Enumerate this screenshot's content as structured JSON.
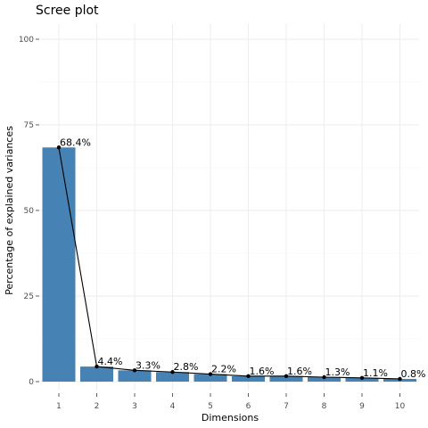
{
  "chart_data": {
    "type": "bar",
    "title": "Scree plot",
    "xlabel": "Dimensions",
    "ylabel": "Percentage of explained variances",
    "categories": [
      "1",
      "2",
      "3",
      "4",
      "5",
      "6",
      "7",
      "8",
      "9",
      "10"
    ],
    "values": [
      68.4,
      4.4,
      3.3,
      2.8,
      2.2,
      1.6,
      1.6,
      1.3,
      1.1,
      0.8
    ],
    "labels": [
      "68.4%",
      "4.4%",
      "3.3%",
      "2.8%",
      "2.2%",
      "1.6%",
      "1.6%",
      "1.3%",
      "1.1%",
      "0.8%"
    ],
    "ylim": [
      0,
      100
    ],
    "yticks": [
      0,
      25,
      50,
      75,
      100
    ],
    "grid": true,
    "overlay": "line with points",
    "colors": {
      "bar": "#4682b4",
      "line": "#000000",
      "point": "#000000"
    }
  }
}
